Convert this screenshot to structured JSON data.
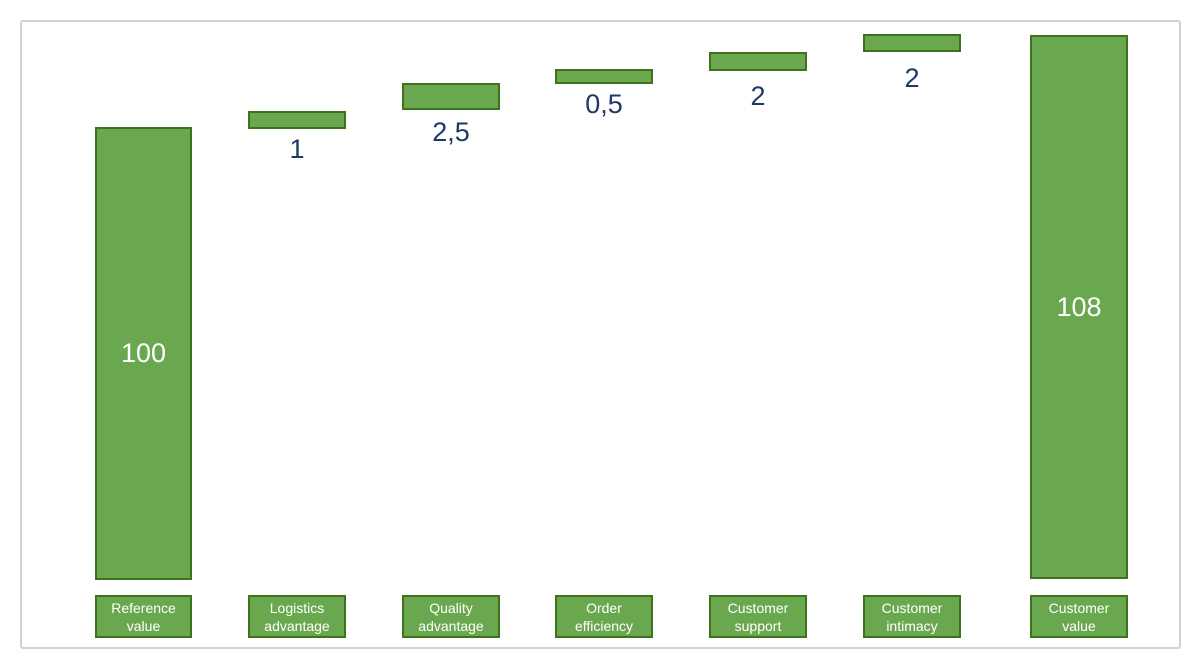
{
  "chart_data": {
    "type": "bar",
    "subtype": "waterfall",
    "title": "",
    "categories": [
      "Reference value",
      "Logistics advantage",
      "Quality advantage",
      "Order efficiency",
      "Customer support",
      "Customer intimacy",
      "Customer value"
    ],
    "values": [
      100,
      1,
      2.5,
      0.5,
      2,
      2,
      108
    ],
    "value_labels": [
      "100",
      "1",
      "2,5",
      "0,5",
      "2",
      "2",
      "108"
    ],
    "bar_roles": [
      "total",
      "increment",
      "increment",
      "increment",
      "increment",
      "increment",
      "total"
    ],
    "xlabel": "",
    "ylabel": "",
    "legend_position": "none",
    "grid": false,
    "axes_visible": false,
    "colors": {
      "bar_fill": "#6aa84f",
      "bar_border": "#40721e",
      "increment_value_text": "#1f3864",
      "total_value_text": "#ffffff",
      "category_box_fill": "#6aa84f",
      "category_box_border": "#40721e",
      "category_text": "#ffffff",
      "frame_border": "#d2d2d2",
      "background": "#ffffff"
    }
  },
  "columns": [
    {
      "label": "Reference value",
      "value": "100"
    },
    {
      "label": "Logistics advantage",
      "value": "1"
    },
    {
      "label": "Quality advantage",
      "value": "2,5"
    },
    {
      "label": "Order efficiency",
      "value": "0,5"
    },
    {
      "label": "Customer support",
      "value": "2"
    },
    {
      "label": "Customer intimacy",
      "value": "2"
    },
    {
      "label": "Customer value",
      "value": "108"
    }
  ]
}
